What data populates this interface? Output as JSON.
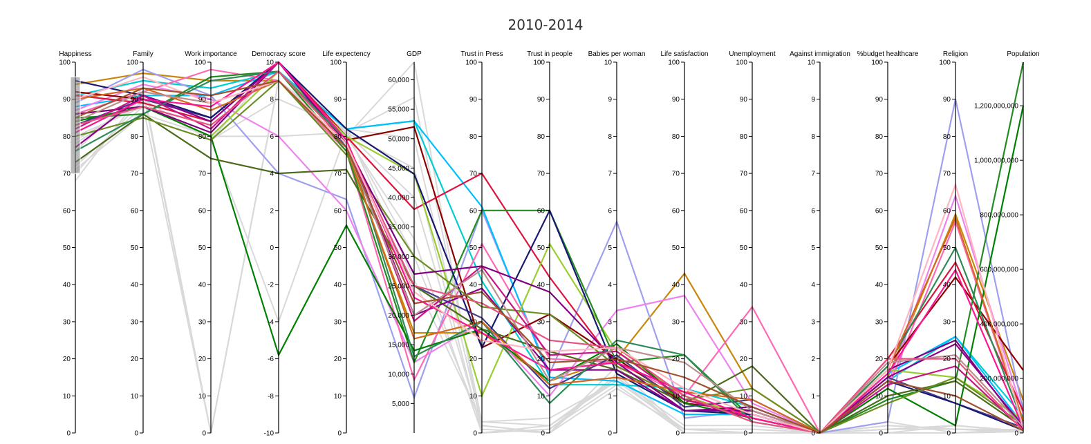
{
  "chart_data": {
    "type": "parallel-coordinates",
    "title": "2010-2014",
    "axes": [
      {
        "label": "Happiness",
        "ticks": [
          0,
          10,
          20,
          30,
          40,
          50,
          60,
          70,
          80,
          90,
          100
        ],
        "domain": [
          0,
          100
        ]
      },
      {
        "label": "Family",
        "ticks": [
          0,
          10,
          20,
          30,
          40,
          50,
          60,
          70,
          80,
          90,
          100
        ],
        "domain": [
          0,
          100
        ]
      },
      {
        "label": "Work importance",
        "ticks": [
          0,
          10,
          20,
          30,
          40,
          50,
          60,
          70,
          80,
          90,
          100
        ],
        "domain": [
          0,
          100
        ]
      },
      {
        "label": "Democracy score",
        "ticks": [
          -10,
          -8,
          -6,
          -4,
          -2,
          0,
          2,
          4,
          6,
          8,
          10
        ],
        "domain": [
          -10,
          10
        ]
      },
      {
        "label": "Life expectency",
        "ticks": [
          0,
          10,
          20,
          30,
          40,
          50,
          60,
          70,
          80,
          90,
          100
        ],
        "domain": [
          0,
          100
        ]
      },
      {
        "label": "GDP",
        "ticks": [
          5000,
          10000,
          15000,
          20000,
          25000,
          30000,
          35000,
          40000,
          45000,
          50000,
          55000,
          60000
        ],
        "tick_labels": [
          "5,000",
          "10,000",
          "15,000",
          "20,000",
          "25,000",
          "30,000",
          "35,000",
          "40,000",
          "45,000",
          "50,000",
          "55,000",
          "60,000"
        ],
        "domain": [
          0,
          63000
        ]
      },
      {
        "label": "Trust in Press",
        "ticks": [
          0,
          10,
          20,
          30,
          40,
          50,
          60,
          70,
          80,
          90,
          100
        ],
        "domain": [
          0,
          100
        ]
      },
      {
        "label": "Trust in people",
        "ticks": [
          0,
          10,
          20,
          30,
          40,
          50,
          60,
          70,
          80,
          90,
          100
        ],
        "domain": [
          0,
          100
        ]
      },
      {
        "label": "Babies per woman",
        "ticks": [
          0,
          1,
          2,
          3,
          4,
          5,
          6,
          7,
          8,
          9,
          10
        ],
        "domain": [
          0,
          10
        ]
      },
      {
        "label": "Life satisfaction",
        "ticks": [
          0,
          10,
          20,
          30,
          40,
          50,
          60,
          70,
          80,
          90,
          100
        ],
        "domain": [
          0,
          100
        ]
      },
      {
        "label": "Unemployment",
        "ticks": [
          0,
          10,
          20,
          30,
          40,
          50,
          60,
          70,
          80,
          90,
          100
        ],
        "domain": [
          0,
          100
        ]
      },
      {
        "label": "Against immigration",
        "ticks": [
          0,
          1,
          2,
          3,
          4,
          5,
          6,
          7,
          8,
          9,
          10
        ],
        "domain": [
          0,
          10
        ]
      },
      {
        "label": "%budget healthcare",
        "ticks": [
          0,
          10,
          20,
          30,
          40,
          50,
          60,
          70,
          80,
          90,
          100
        ],
        "domain": [
          0,
          100
        ]
      },
      {
        "label": "Religion",
        "ticks": [
          0,
          10,
          20,
          30,
          40,
          50,
          60,
          70,
          80,
          90,
          100
        ],
        "domain": [
          0,
          100
        ]
      },
      {
        "label": "Population",
        "ticks": [
          0,
          200000000,
          400000000,
          600000000,
          800000000,
          1000000000,
          1200000000
        ],
        "tick_labels": [
          "0",
          "200,000,000",
          "400,000,000",
          "600,000,000",
          "800,000,000",
          "1,000,000,000",
          "1,200,000,000"
        ],
        "domain": [
          0,
          1360000000
        ]
      }
    ],
    "brush": {
      "axis": "Happiness",
      "range": [
        70,
        96
      ]
    },
    "selected_series": [
      {
        "color": "#c8860a",
        "values": [
          94,
          97,
          95,
          9,
          76,
          17000,
          27,
          14,
          2.0,
          43,
          12,
          0,
          15,
          59,
          120000000
        ]
      },
      {
        "color": "#00ced1",
        "values": [
          91,
          95,
          93,
          9.5,
          82,
          53000,
          41,
          13,
          1.3,
          12,
          7,
          0,
          14,
          26,
          60000000
        ]
      },
      {
        "color": "#9f9fef",
        "values": [
          89,
          98,
          91,
          4,
          63,
          6000,
          60,
          16,
          5.7,
          4,
          6,
          0,
          3,
          90,
          80000000
        ]
      },
      {
        "color": "#00bfff",
        "values": [
          88,
          91,
          91,
          9.5,
          82,
          53000,
          61,
          15,
          1.4,
          5,
          5,
          0,
          16,
          26,
          30000000
        ]
      },
      {
        "color": "#ee82ee",
        "values": [
          87,
          94,
          90,
          6,
          60,
          12000,
          30,
          10,
          3.3,
          37,
          8,
          0,
          13,
          64,
          70000000
        ]
      },
      {
        "color": "#ff69b4",
        "values": [
          86,
          92,
          98,
          9,
          76,
          9000,
          51,
          20,
          1.9,
          10,
          34,
          0,
          12,
          57,
          40000000
        ]
      },
      {
        "color": "#8b0000",
        "values": [
          92,
          90,
          85,
          10,
          79,
          52000,
          23,
          32,
          2.0,
          8,
          6,
          0,
          18,
          42,
          230000000
        ]
      },
      {
        "color": "#dc143c",
        "values": [
          91,
          89,
          84,
          10,
          80,
          38000,
          70,
          42,
          1.8,
          9,
          5,
          0,
          20,
          46,
          80000000
        ]
      },
      {
        "color": "#9acd32",
        "values": [
          86,
          88,
          80,
          9.5,
          80,
          44000,
          10,
          51,
          2.2,
          10,
          4,
          0,
          17,
          15,
          50000000
        ]
      },
      {
        "color": "#228b22",
        "values": [
          85,
          86,
          96,
          9.5,
          76,
          12000,
          60,
          60,
          1.9,
          21,
          4,
          0,
          9,
          14,
          1360000000
        ]
      },
      {
        "color": "#008000",
        "values": [
          84,
          88,
          80,
          -5.8,
          56,
          14000,
          28,
          14,
          2.4,
          8,
          4,
          0,
          12,
          2,
          1200000000
        ]
      },
      {
        "color": "#483d8b",
        "values": [
          83,
          90,
          85,
          10,
          77,
          25000,
          31,
          12,
          2.1,
          7,
          9,
          0,
          15,
          8,
          20000000
        ]
      },
      {
        "color": "#191970",
        "values": [
          95,
          91,
          85,
          10,
          82,
          44000,
          23,
          60,
          1.6,
          6,
          5,
          0,
          14,
          8,
          10000000
        ]
      },
      {
        "color": "#4b6b1a",
        "values": [
          73,
          86,
          74,
          4,
          71,
          25000,
          28,
          22,
          1.7,
          8,
          18,
          0,
          10,
          14,
          20000000
        ]
      },
      {
        "color": "#6b8e23",
        "values": [
          80,
          85,
          79,
          9,
          75,
          30000,
          34,
          32,
          1.8,
          9,
          12,
          0,
          8,
          15,
          30000000
        ]
      },
      {
        "color": "#800080",
        "values": [
          86,
          88,
          81,
          10,
          78,
          27000,
          45,
          38,
          1.9,
          6,
          7,
          0,
          17,
          25,
          15000000
        ]
      },
      {
        "color": "#8b008b",
        "values": [
          77,
          91,
          84,
          10,
          79,
          20000,
          39,
          17,
          1.7,
          6,
          6,
          0,
          15,
          24,
          25000000
        ]
      },
      {
        "color": "#2e8b57",
        "values": [
          76,
          86,
          95,
          9.5,
          79,
          13000,
          30,
          8,
          2.5,
          21,
          3,
          0,
          18,
          50,
          35000000
        ]
      },
      {
        "color": "#d2691e",
        "values": [
          90,
          93,
          87,
          9,
          77,
          16000,
          30,
          13,
          1.5,
          11,
          9,
          0,
          17,
          58,
          45000000
        ]
      },
      {
        "color": "#c71585",
        "values": [
          82,
          91,
          82,
          10,
          79,
          19000,
          45,
          21,
          2.2,
          9,
          4,
          0,
          13,
          18,
          12000000
        ]
      },
      {
        "color": "#ff1493",
        "values": [
          81,
          90,
          88,
          10,
          79,
          23000,
          27,
          17,
          1.9,
          11,
          4,
          0,
          16,
          44,
          20000000
        ]
      },
      {
        "color": "#bc8f8f",
        "values": [
          84,
          92,
          89,
          9,
          77,
          20000,
          44,
          14,
          2.3,
          19,
          6,
          0,
          19,
          21,
          22000000
        ]
      },
      {
        "color": "#e75480",
        "values": [
          83,
          88,
          83,
          9.5,
          78,
          25000,
          35,
          25,
          2.3,
          10,
          3,
          0,
          20,
          20,
          8000000
        ]
      },
      {
        "color": "#ffb6c1",
        "values": [
          90,
          96,
          89,
          9,
          78,
          24000,
          25,
          22,
          2.3,
          12,
          5,
          0,
          17,
          67,
          18000000
        ]
      },
      {
        "color": "#a0522d",
        "values": [
          85,
          93,
          91,
          9,
          77,
          22000,
          38,
          19,
          2.0,
          15,
          7,
          0,
          14,
          10,
          9000000
        ]
      }
    ],
    "context_series": [
      {
        "values": [
          68,
          92,
          0,
          9,
          80,
          63000,
          0,
          1,
          1.5,
          0,
          0,
          0,
          0,
          0,
          5000000
        ]
      },
      {
        "values": [
          80,
          88,
          0,
          9,
          81,
          57000,
          3,
          2,
          1.4,
          1,
          0,
          0,
          2,
          1,
          8000000
        ]
      },
      {
        "values": [
          78,
          90,
          79,
          8,
          82,
          50000,
          2,
          0,
          1.6,
          0,
          0,
          0,
          1,
          1,
          12000000
        ]
      },
      {
        "values": [
          72,
          88,
          80,
          6,
          81,
          45000,
          0,
          1,
          1.3,
          0,
          0,
          0,
          1,
          2,
          4000000
        ]
      },
      {
        "values": [
          70,
          90,
          79,
          -4,
          81,
          40000,
          1,
          0,
          1.2,
          1,
          1,
          0,
          0,
          2,
          6000000
        ]
      },
      {
        "values": [
          76,
          93,
          0,
          9,
          80,
          33000,
          0,
          2,
          1.5,
          2,
          2,
          0,
          3,
          0,
          15000000
        ]
      },
      {
        "values": [
          79,
          89,
          79,
          10,
          81,
          30000,
          2,
          0,
          1.8,
          0,
          0,
          0,
          2,
          1,
          3000000
        ]
      },
      {
        "values": [
          71,
          86,
          80,
          9.5,
          82,
          26000,
          3,
          4,
          1.4,
          1,
          1,
          0,
          1,
          2,
          7000000
        ]
      }
    ]
  },
  "layout": {
    "title": "2010-2014"
  }
}
